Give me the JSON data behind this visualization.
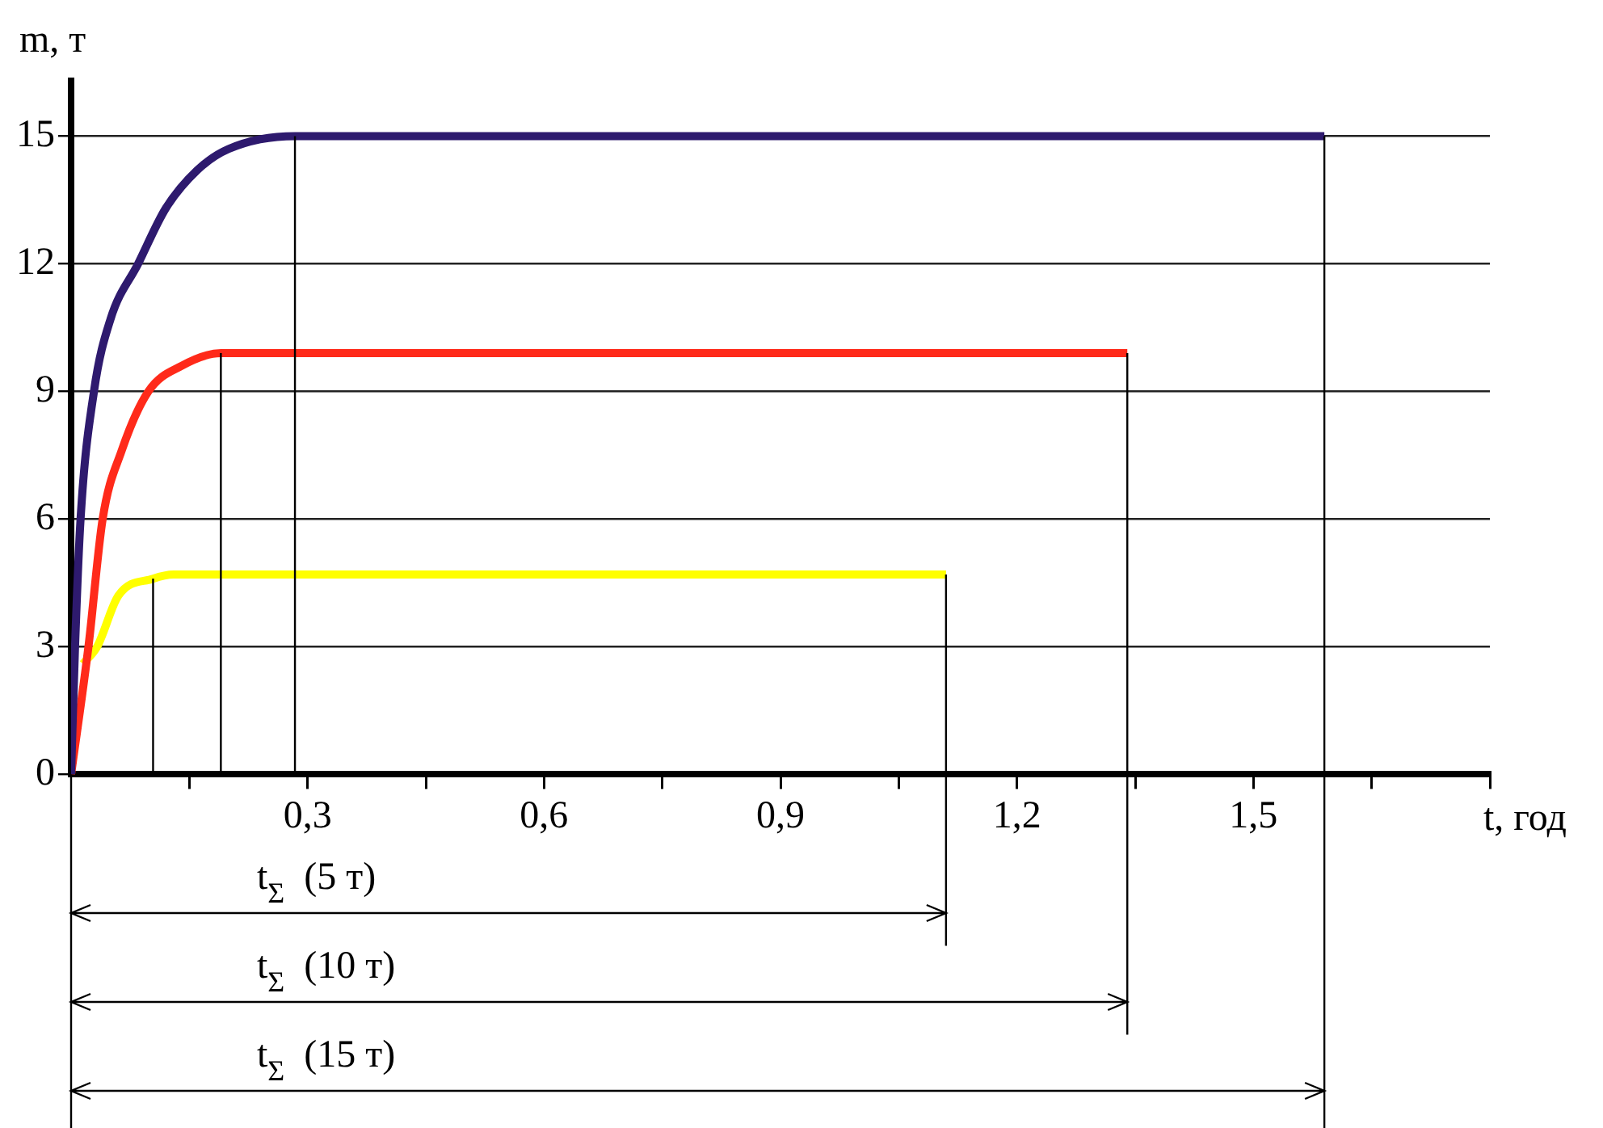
{
  "chart_data": {
    "type": "line",
    "xlabel": "t, год",
    "ylabel": "m, т",
    "xlim": [
      0,
      1.8
    ],
    "ylim": [
      0,
      16.3
    ],
    "xticks": [
      {
        "value": 0.15,
        "label": null
      },
      {
        "value": 0.3,
        "label": "0,3"
      },
      {
        "value": 0.45,
        "label": null
      },
      {
        "value": 0.6,
        "label": "0,6"
      },
      {
        "value": 0.75,
        "label": null
      },
      {
        "value": 0.9,
        "label": "0,9"
      },
      {
        "value": 1.05,
        "label": null
      },
      {
        "value": 1.2,
        "label": "1,2"
      },
      {
        "value": 1.35,
        "label": null
      },
      {
        "value": 1.5,
        "label": "1,5"
      },
      {
        "value": 1.65,
        "label": null
      },
      {
        "value": 1.8,
        "label": null
      }
    ],
    "yticks": [
      0,
      3,
      6,
      9,
      12,
      15
    ],
    "grid": "y",
    "legend": false,
    "marker": "none",
    "line_style": "solid",
    "series": [
      {
        "color": "#2e1a6e",
        "x": [
          0,
          0.005,
          0.012,
          0.029,
          0.05,
          0.085,
          0.12,
          0.16,
          0.2,
          0.284,
          1.59
        ],
        "values": [
          0,
          3,
          6,
          9,
          10.7,
          12,
          13.3,
          14.2,
          14.7,
          15,
          15
        ]
      },
      {
        "color": "#ff2a1a",
        "x": [
          0,
          0.022,
          0.04,
          0.064,
          0.098,
          0.14,
          0.19,
          1.34
        ],
        "values": [
          0,
          3,
          6,
          7.6,
          9,
          9.6,
          9.9,
          9.9
        ]
      },
      {
        "color": "#ffff00",
        "x": [
          0.015,
          0.033,
          0.06,
          0.104,
          0.13,
          1.11
        ],
        "values": [
          2.6,
          3,
          4.2,
          4.6,
          4.7,
          4.7
        ]
      }
    ],
    "ref_lines": [
      {
        "axis": "x",
        "value": 0.104
      },
      {
        "axis": "x",
        "value": 0.19
      },
      {
        "axis": "x",
        "value": 0.284
      },
      {
        "axis": "x",
        "value": 1.11
      },
      {
        "axis": "x",
        "value": 1.34
      },
      {
        "axis": "x",
        "value": 1.59
      }
    ],
    "annotations": [
      "t$_{Σ}$  (5 т)",
      "t$_{Σ}$  (10 т)",
      "t$_{Σ}$  (15 т)"
    ]
  }
}
